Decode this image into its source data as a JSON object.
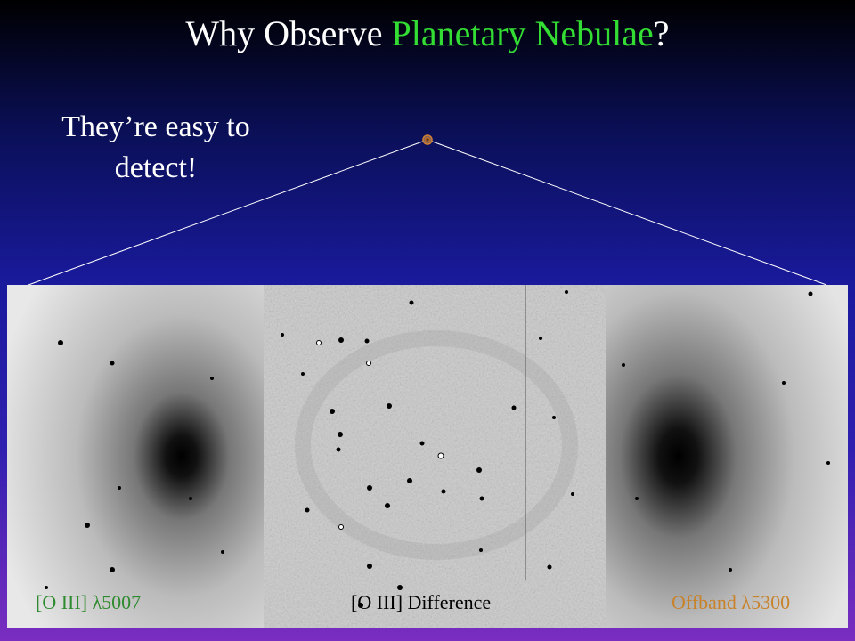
{
  "title": {
    "prefix": "Why Observe ",
    "highlight": "Planetary Nebulae",
    "suffix": "?"
  },
  "caption": "They’re easy to detect!",
  "panels": [
    {
      "label": "[O III] λ5007"
    },
    {
      "label": "[O III] Difference"
    },
    {
      "label": "Offband λ5300"
    }
  ]
}
